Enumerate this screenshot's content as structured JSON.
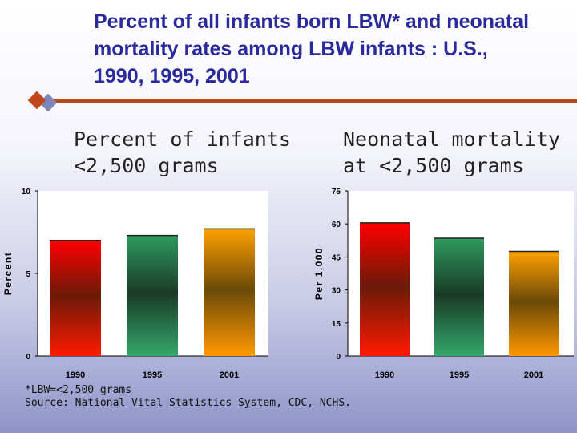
{
  "title": "Percent of all infants born LBW* and neonatal mortality rates among LBW infants : U.S., 1990, 1995, 2001",
  "footnote": "*LBW=<2,500 grams",
  "source": "Source: National Vital Statistics System, CDC, NCHS.",
  "colors": {
    "title": "#2a2a9c",
    "rule": "#b24a1a",
    "bar_1990": [
      "#ff0000",
      "#6b1a08",
      "#ff1a00"
    ],
    "bar_1995": [
      "#2e9a5e",
      "#1a3a28",
      "#33a86a"
    ],
    "bar_2001": [
      "#ffa000",
      "#6b4a08",
      "#ff9800"
    ]
  },
  "chart_data": [
    {
      "type": "bar",
      "title": "Percent of infants\n<2,500 grams",
      "ylabel": "Percent",
      "categories": [
        "1990",
        "1995",
        "2001"
      ],
      "values": [
        7.0,
        7.3,
        7.7
      ],
      "ylim": [
        0,
        10
      ],
      "yticks": [
        "0",
        "5",
        "10"
      ],
      "grid": false
    },
    {
      "type": "bar",
      "title": "Neonatal mortality\nat <2,500 grams",
      "ylabel": "Per 1,000",
      "categories": [
        "1990",
        "1995",
        "2001"
      ],
      "values": [
        60.5,
        53.5,
        47.5
      ],
      "ylim": [
        0,
        75
      ],
      "yticks": [
        "0",
        "15",
        "30",
        "45",
        "60",
        "75"
      ],
      "grid": false
    }
  ]
}
